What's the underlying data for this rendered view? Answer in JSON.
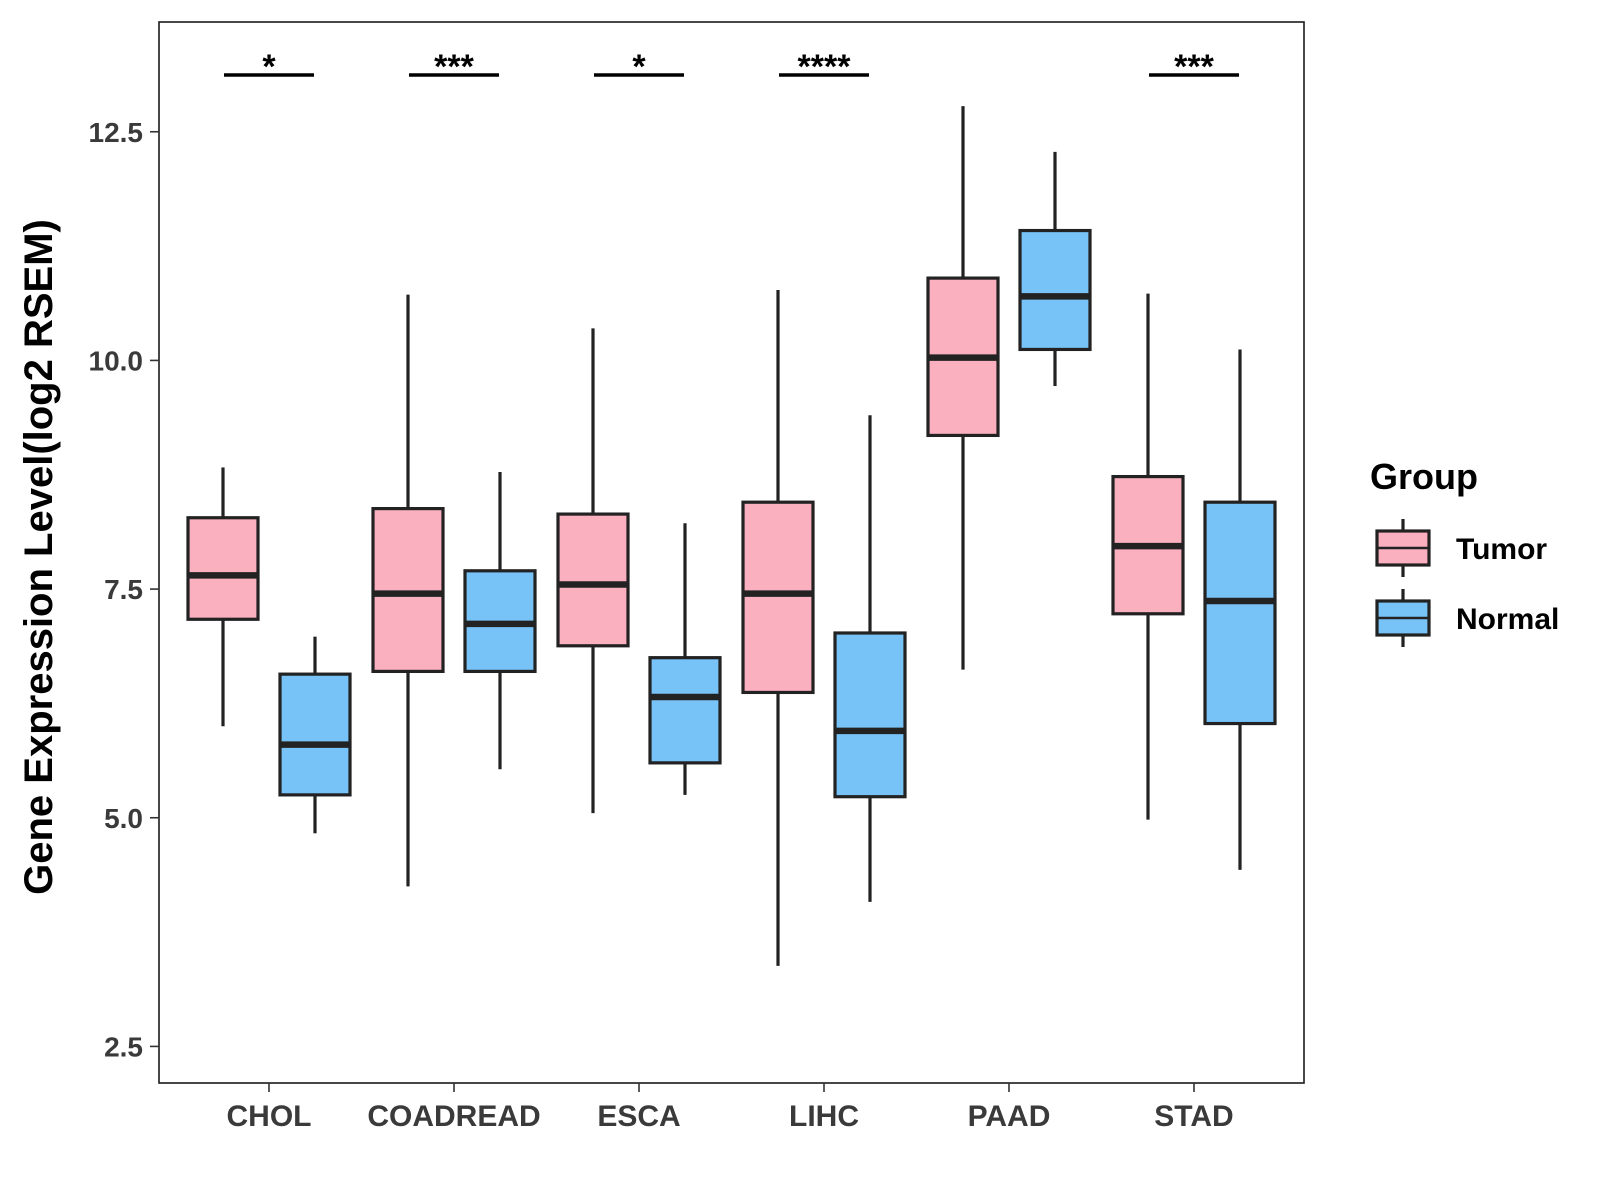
{
  "chart_data": {
    "type": "boxplot",
    "title": "",
    "xlabel": "",
    "ylabel": "Gene Expression Level(log2 RSEM)",
    "ylim": [
      2.1,
      13.7
    ],
    "yticks": [
      2.5,
      5.0,
      7.5,
      10.0,
      12.5
    ],
    "ytick_labels": [
      "2.5",
      "5.0",
      "7.5",
      "10.0",
      "12.5"
    ],
    "categories": [
      "CHOL",
      "COADREAD",
      "ESCA",
      "LIHC",
      "PAAD",
      "STAD"
    ],
    "significance": [
      "*",
      "***",
      "*",
      "****",
      "",
      "***"
    ],
    "legend": {
      "title": "Group",
      "position": "right",
      "entries": [
        "Tumor",
        "Normal"
      ]
    },
    "series": [
      {
        "name": "Tumor",
        "color": "#FBB0C0",
        "boxes": [
          {
            "whisker_low": 6.0,
            "q1": 7.17,
            "median": 7.65,
            "q3": 8.28,
            "whisker_high": 8.83
          },
          {
            "whisker_low": 4.25,
            "q1": 6.6,
            "median": 7.45,
            "q3": 8.38,
            "whisker_high": 10.72
          },
          {
            "whisker_low": 5.05,
            "q1": 6.88,
            "median": 7.55,
            "q3": 8.32,
            "whisker_high": 10.35
          },
          {
            "whisker_low": 3.38,
            "q1": 6.37,
            "median": 7.45,
            "q3": 8.45,
            "whisker_high": 10.77
          },
          {
            "whisker_low": 6.62,
            "q1": 9.18,
            "median": 10.03,
            "q3": 10.9,
            "whisker_high": 12.78
          },
          {
            "whisker_low": 4.98,
            "q1": 7.23,
            "median": 7.97,
            "q3": 8.73,
            "whisker_high": 10.73
          }
        ]
      },
      {
        "name": "Normal",
        "color": "#77C3F8",
        "boxes": [
          {
            "whisker_low": 4.83,
            "q1": 5.25,
            "median": 5.8,
            "q3": 6.57,
            "whisker_high": 6.98
          },
          {
            "whisker_low": 5.53,
            "q1": 6.6,
            "median": 7.12,
            "q3": 7.7,
            "whisker_high": 8.78
          },
          {
            "whisker_low": 5.25,
            "q1": 5.6,
            "median": 6.32,
            "q3": 6.75,
            "whisker_high": 8.22
          },
          {
            "whisker_low": 4.08,
            "q1": 5.23,
            "median": 5.95,
            "q3": 7.02,
            "whisker_high": 9.4
          },
          {
            "whisker_low": 9.72,
            "q1": 10.12,
            "median": 10.7,
            "q3": 11.42,
            "whisker_high": 12.28
          },
          {
            "whisker_low": 4.43,
            "q1": 6.03,
            "median": 7.37,
            "q3": 8.45,
            "whisker_high": 10.12
          }
        ]
      }
    ]
  }
}
